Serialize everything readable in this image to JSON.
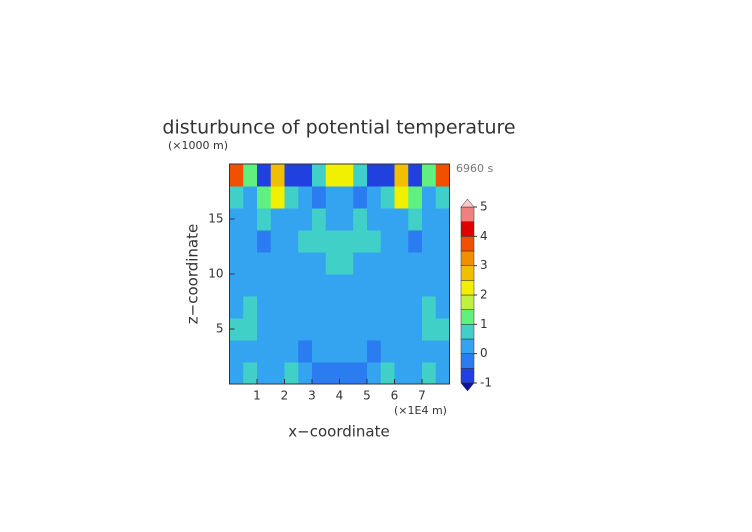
{
  "chart_data": {
    "type": "contour",
    "title": "disturbunce of potential temperature",
    "y_unit": "(×1000 m)",
    "x_unit": "(×1E4 m)",
    "time_label": "6960 s",
    "x_label": "x−coordinate",
    "y_label": "z−coordinate",
    "xlim": [
      0,
      8
    ],
    "ylim": [
      0,
      20
    ],
    "xticks": [
      1,
      2,
      3,
      4,
      5,
      6,
      7
    ],
    "yticks": [
      5,
      10,
      15
    ],
    "z": [
      [
        0.3,
        0.6,
        0.3,
        0.3,
        0.6,
        0.3,
        -0.3,
        -0.3,
        -0.3,
        -0.3,
        0.3,
        0.6,
        0.3,
        0.3,
        0.6,
        0.3
      ],
      [
        0.2,
        0.3,
        0.2,
        0.2,
        0.2,
        -0.2,
        0.2,
        0.2,
        0.2,
        0.2,
        -0.2,
        0.2,
        0.2,
        0.2,
        0.3,
        0.2
      ],
      [
        0.7,
        0.6,
        0.2,
        0.2,
        0.2,
        0.2,
        0.2,
        0.2,
        0.2,
        0.2,
        0.2,
        0.2,
        0.2,
        0.2,
        0.6,
        0.7
      ],
      [
        0.2,
        0.7,
        0.2,
        0.2,
        0.2,
        0.2,
        0.2,
        0.2,
        0.2,
        0.2,
        0.2,
        0.2,
        0.2,
        0.2,
        0.7,
        0.2
      ],
      [
        0.2,
        0.2,
        0.2,
        0.3,
        0.2,
        0.2,
        0.2,
        0.2,
        0.2,
        0.2,
        0.2,
        0.2,
        0.3,
        0.2,
        0.2,
        0.2
      ],
      [
        0.3,
        0.3,
        0.2,
        0.2,
        0.3,
        0.3,
        0.3,
        0.6,
        0.6,
        0.3,
        0.3,
        0.3,
        0.2,
        0.2,
        0.3,
        0.3
      ],
      [
        0.3,
        0.2,
        -0.3,
        0.2,
        0.3,
        0.6,
        0.7,
        0.8,
        0.8,
        0.7,
        0.6,
        0.3,
        0.2,
        -0.3,
        0.2,
        0.3
      ],
      [
        0.3,
        0.3,
        0.6,
        0.3,
        0.2,
        0.3,
        0.7,
        0.3,
        0.3,
        0.7,
        0.3,
        0.2,
        0.3,
        0.6,
        0.3,
        0.3
      ],
      [
        0.6,
        0.3,
        1.2,
        2.3,
        0.7,
        0.3,
        -0.3,
        0.2,
        0.2,
        -0.3,
        0.3,
        0.7,
        2.3,
        1.2,
        0.3,
        0.6
      ],
      [
        3.5,
        1.2,
        -0.7,
        2.6,
        -0.7,
        -0.7,
        0.8,
        2.3,
        2.3,
        0.8,
        -0.7,
        -0.7,
        2.6,
        -0.7,
        1.2,
        3.5
      ]
    ],
    "levels": [
      -1,
      -0.5,
      0,
      0.5,
      1,
      1.5,
      2,
      2.5,
      3,
      3.5,
      4,
      4.5,
      5
    ],
    "colors": [
      "#2040e0",
      "#2a7cf0",
      "#34a4f0",
      "#40d0c8",
      "#60f080",
      "#c0f040",
      "#f0f000",
      "#f0c000",
      "#f09000",
      "#f05000",
      "#e00000",
      "#f08080"
    ],
    "under_color": "#1010a0",
    "over_color": "#f8c8c8",
    "cbar_ticks": [
      5,
      4,
      3,
      2,
      1,
      0,
      -1
    ]
  }
}
